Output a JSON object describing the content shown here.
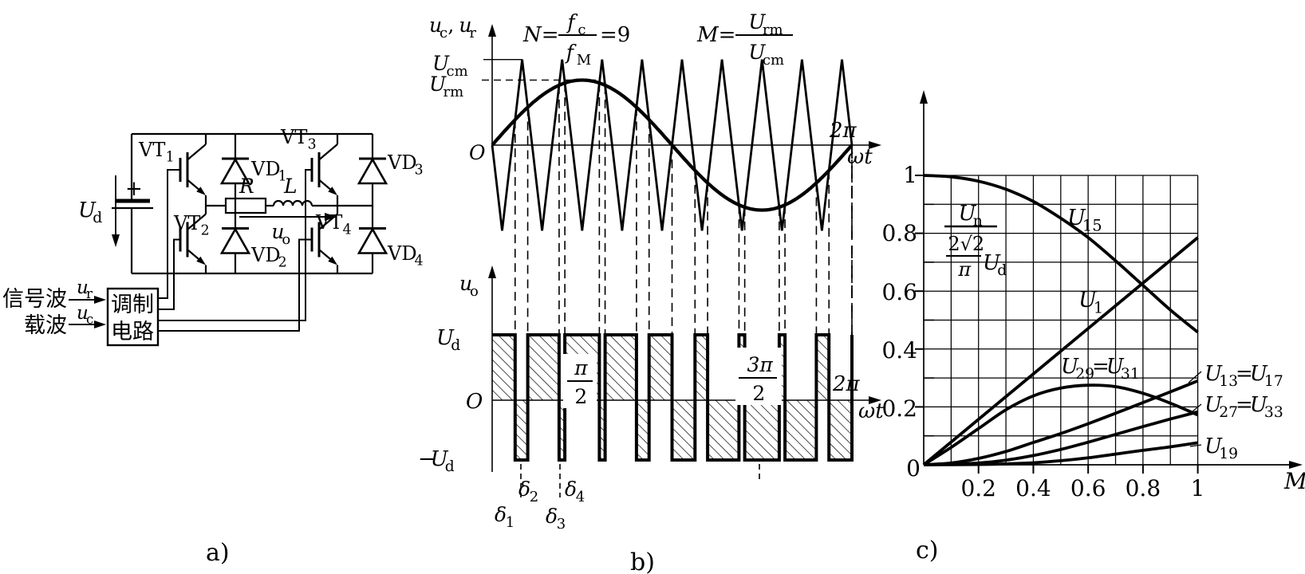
{
  "figure": {
    "captions": {
      "a": "a)",
      "b": "b)",
      "c": "c)"
    }
  },
  "panel_a": {
    "source": {
      "label": "U_d",
      "plus": "+"
    },
    "transistors": [
      "VT_1",
      "VT_2",
      "VT_3",
      "VT_4"
    ],
    "diodes": [
      "VD_1",
      "VD_2",
      "VD_3",
      "VD_4"
    ],
    "load": {
      "resistor": "R",
      "inductor": "L",
      "output_voltage": "u_o"
    },
    "modulator": {
      "line1": "调制",
      "line2": "电路",
      "input1": "信号波",
      "input2": "载波",
      "signal1": "u_r",
      "signal2": "u_c"
    }
  },
  "panel_b": {
    "top": {
      "axis_y": [
        "u_c",
        ", ",
        "u_r"
      ],
      "ratio_n": {
        "prefix": "N=",
        "num": "f_c",
        "den": "f_M",
        "suffix": "=9"
      },
      "ratio_m": {
        "prefix": "M=",
        "num": "U_rm",
        "den": "U_cm"
      },
      "level_carrier": "U_cm",
      "level_ref": "U_rm",
      "origin": "O",
      "x_end": "2π",
      "axis_x": "ωt"
    },
    "bottom": {
      "axis_y": "u_o",
      "level_pos": "U_d",
      "origin": "O",
      "level_neg": [
        "−",
        "U_d"
      ],
      "frac_half": {
        "num": "π",
        "den": "2"
      },
      "frac_three_half": {
        "num": "3π",
        "den": "2"
      },
      "x_end": "2π",
      "axis_x": "ωt",
      "deltas": [
        "δ_1",
        "δ_2",
        "δ_3",
        "δ_4"
      ]
    },
    "render": {
      "carrier_ratio_N": 9,
      "modulation_depth_M": 0.76
    }
  },
  "panel_c": {
    "ylabel": {
      "num": "U_n",
      "den_num": "2√2",
      "den_den": "π",
      "den_unit": "U_d"
    },
    "xlabel": "M",
    "y_ticks": [
      "0",
      "0.2",
      "0.4",
      "0.6",
      "0.8",
      "1"
    ],
    "x_ticks": [
      "0.2",
      "0.4",
      "0.6",
      "0.8",
      "1"
    ],
    "curve_labels": {
      "u15": "U_15",
      "u1": "U_1",
      "u29": [
        "U_29",
        "=",
        "U_31"
      ],
      "u13": [
        "U_13",
        "=",
        "U_17"
      ],
      "u27": [
        "U_27",
        "=",
        "U_33"
      ],
      "u19": "U_19"
    }
  },
  "chart_data": {
    "type": "line",
    "title": "",
    "xlabel": "M",
    "ylabel": "Un / ((2√2/π)Ud)",
    "xlim": [
      0,
      1
    ],
    "ylim": [
      0,
      1
    ],
    "grid": true,
    "grid_step": 0.1,
    "legend_position": "on-curve",
    "series": [
      {
        "name": "U15",
        "points": [
          [
            0,
            1
          ],
          [
            0.1,
            0.995
          ],
          [
            0.2,
            0.98
          ],
          [
            0.3,
            0.952
          ],
          [
            0.4,
            0.91
          ],
          [
            0.5,
            0.852
          ],
          [
            0.6,
            0.785
          ],
          [
            0.7,
            0.705
          ],
          [
            0.8,
            0.62
          ],
          [
            0.9,
            0.535
          ],
          [
            1,
            0.458
          ]
        ]
      },
      {
        "name": "U1",
        "points": [
          [
            0,
            0
          ],
          [
            1,
            0.785
          ]
        ]
      },
      {
        "name": "U29=U31",
        "points": [
          [
            0,
            0
          ],
          [
            0.1,
            0.06
          ],
          [
            0.2,
            0.125
          ],
          [
            0.3,
            0.19
          ],
          [
            0.4,
            0.238
          ],
          [
            0.5,
            0.265
          ],
          [
            0.6,
            0.275
          ],
          [
            0.7,
            0.27
          ],
          [
            0.8,
            0.247
          ],
          [
            0.9,
            0.213
          ],
          [
            1,
            0.172
          ]
        ]
      },
      {
        "name": "U13=U17",
        "points": [
          [
            0,
            0
          ],
          [
            0.1,
            0.006
          ],
          [
            0.2,
            0.022
          ],
          [
            0.3,
            0.046
          ],
          [
            0.4,
            0.077
          ],
          [
            0.5,
            0.108
          ],
          [
            0.6,
            0.142
          ],
          [
            0.7,
            0.178
          ],
          [
            0.8,
            0.215
          ],
          [
            0.9,
            0.252
          ],
          [
            1,
            0.29
          ]
        ]
      },
      {
        "name": "U27=U33",
        "points": [
          [
            0,
            0
          ],
          [
            0.1,
            0.002
          ],
          [
            0.2,
            0.006
          ],
          [
            0.3,
            0.016
          ],
          [
            0.4,
            0.032
          ],
          [
            0.5,
            0.053
          ],
          [
            0.6,
            0.078
          ],
          [
            0.7,
            0.105
          ],
          [
            0.8,
            0.132
          ],
          [
            0.9,
            0.158
          ],
          [
            1,
            0.183
          ]
        ]
      },
      {
        "name": "U19",
        "points": [
          [
            0,
            0
          ],
          [
            0.2,
            0.001
          ],
          [
            0.3,
            0.003
          ],
          [
            0.4,
            0.007
          ],
          [
            0.5,
            0.014
          ],
          [
            0.6,
            0.024
          ],
          [
            0.7,
            0.037
          ],
          [
            0.8,
            0.05
          ],
          [
            0.9,
            0.062
          ],
          [
            1,
            0.076
          ]
        ]
      }
    ]
  }
}
